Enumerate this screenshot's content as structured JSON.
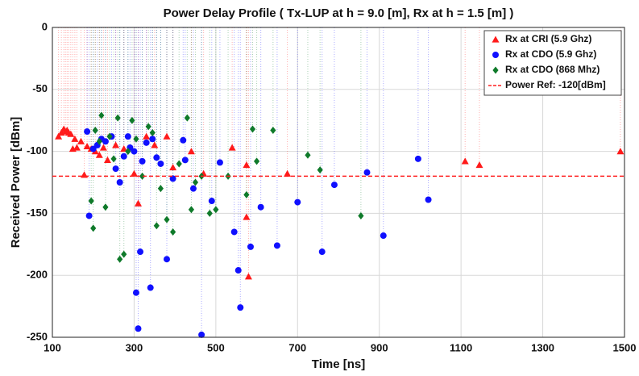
{
  "chart_data": {
    "type": "stem",
    "title": "Power Delay Profile ( Tx-LUP at h = 9.0 [m],  Rx at h = 1.5 [m] )",
    "x_label": "Time [ns]",
    "y_label": "Received Power [dBm]",
    "xlim": [
      100,
      1500
    ],
    "ylim": [
      -250,
      0
    ],
    "xticks": [
      100,
      300,
      500,
      700,
      900,
      1100,
      1300,
      1500
    ],
    "yticks": [
      -250,
      -200,
      -150,
      -100,
      -50,
      0
    ],
    "grid": true,
    "legend": "upper right",
    "reference": {
      "value": -120,
      "label": "Power Ref: -120[dBm]",
      "color": "#ff2020"
    },
    "series": [
      {
        "name": "Rx at CRI (5.9 Ghz)",
        "color": "#ff1a1a",
        "marker": "triangle",
        "x": [
          115,
          122,
          128,
          132,
          136,
          140,
          145,
          150,
          155,
          160,
          170,
          178,
          185,
          195,
          205,
          215,
          225,
          235,
          255,
          275,
          300,
          310,
          330,
          350,
          380,
          395,
          440,
          470,
          540,
          575,
          575,
          580,
          675,
          1110,
          1145,
          1490
        ],
        "values": [
          -88,
          -85,
          -82,
          -84,
          -83,
          -85,
          -86,
          -98,
          -90,
          -97,
          -92,
          -119,
          -96,
          -98,
          -100,
          -103,
          -97,
          -107,
          -95,
          -98,
          -118,
          -142,
          -88,
          -95,
          -88,
          -113,
          -100,
          -118,
          -97,
          -111,
          -153,
          -201,
          -118,
          -108,
          -111,
          -100
        ]
      },
      {
        "name": "Rx at CDO (5.9 Ghz)",
        "color": "#1010ff",
        "marker": "circle",
        "x": [
          185,
          190,
          200,
          210,
          220,
          230,
          245,
          255,
          265,
          275,
          285,
          290,
          300,
          305,
          310,
          315,
          320,
          330,
          340,
          345,
          355,
          365,
          380,
          395,
          420,
          425,
          445,
          465,
          490,
          510,
          545,
          555,
          560,
          585,
          610,
          650,
          700,
          760,
          790,
          870,
          910,
          995,
          1020
        ],
        "values": [
          -84,
          -152,
          -98,
          -95,
          -90,
          -92,
          -88,
          -114,
          -125,
          -104,
          -88,
          -97,
          -100,
          -214,
          -243,
          -181,
          -108,
          -93,
          -210,
          -90,
          -105,
          -110,
          -187,
          -122,
          -91,
          -107,
          -130,
          -248,
          -140,
          -109,
          -165,
          -196,
          -226,
          -177,
          -145,
          -176,
          -141,
          -181,
          -127,
          -117,
          -168,
          -106,
          -139
        ]
      },
      {
        "name": "Rx at CDO (868 Mhz)",
        "color": "#0f7a2a",
        "marker": "diamond",
        "x": [
          195,
          200,
          205,
          215,
          220,
          230,
          240,
          250,
          260,
          265,
          275,
          285,
          295,
          305,
          320,
          335,
          345,
          355,
          365,
          380,
          395,
          410,
          430,
          440,
          450,
          465,
          485,
          500,
          530,
          575,
          590,
          600,
          640,
          725,
          755,
          855
        ],
        "values": [
          -140,
          -162,
          -83,
          -92,
          -71,
          -145,
          -88,
          -106,
          -73,
          -187,
          -183,
          -100,
          -75,
          -90,
          -120,
          -80,
          -85,
          -160,
          -130,
          -155,
          -165,
          -110,
          -73,
          -147,
          -125,
          -120,
          -150,
          -147,
          -120,
          -135,
          -82,
          -108,
          -83,
          -103,
          -115,
          -152
        ]
      }
    ]
  }
}
